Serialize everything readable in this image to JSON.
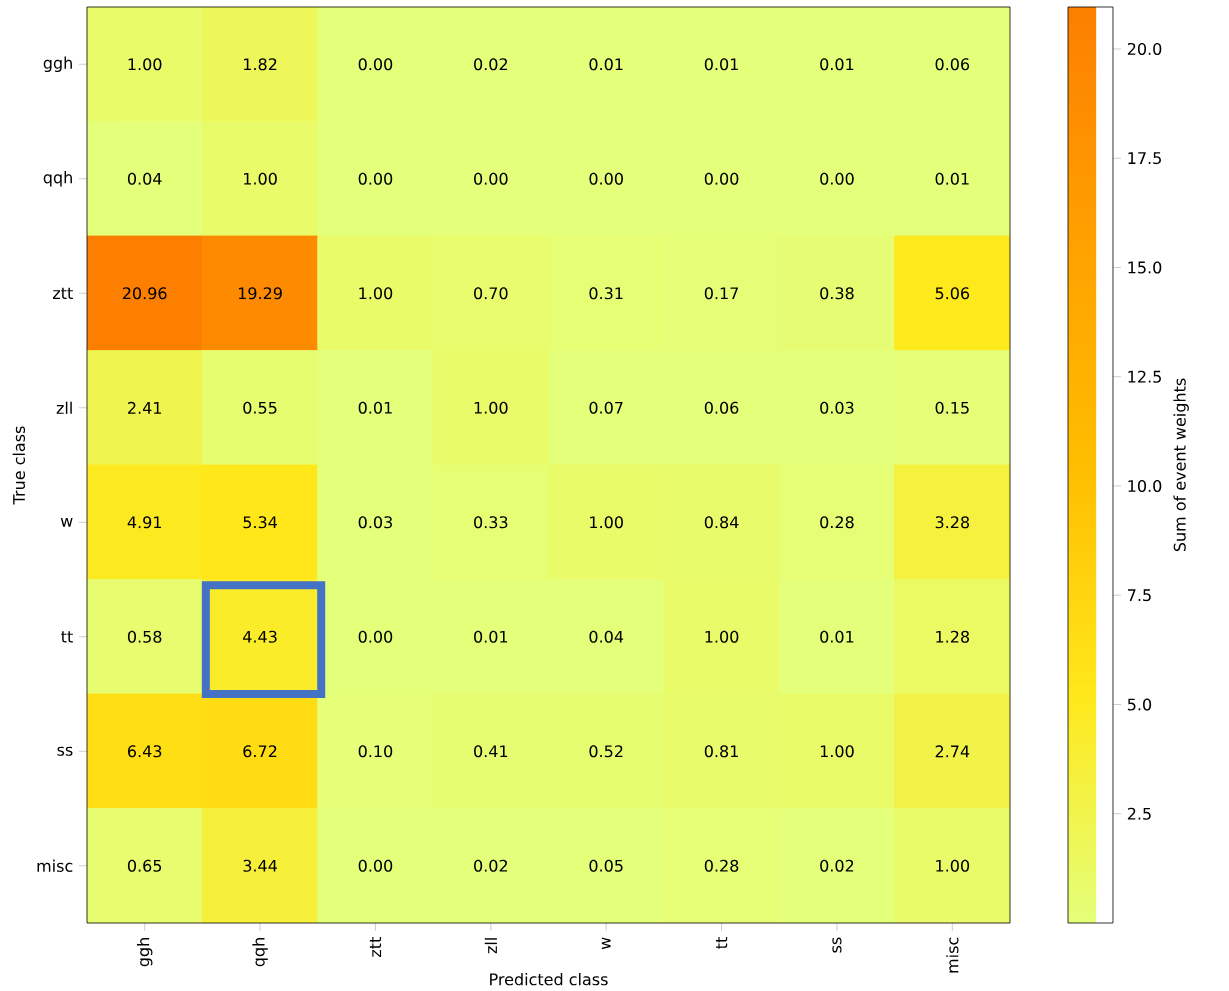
{
  "chart_data": {
    "type": "heatmap",
    "xlabel": "Predicted class",
    "ylabel": "True class",
    "clabel": "Sum of event weights",
    "categories": [
      "ggh",
      "qqh",
      "ztt",
      "zll",
      "w",
      "tt",
      "ss",
      "misc"
    ],
    "y_categories": [
      "ggh",
      "qqh",
      "ztt",
      "zll",
      "w",
      "tt",
      "ss",
      "misc"
    ],
    "cells": [
      [
        1.0,
        1.82,
        0.0,
        0.02,
        0.01,
        0.01,
        0.01,
        0.06
      ],
      [
        0.04,
        1.0,
        0.0,
        0.0,
        0.0,
        0.0,
        0.0,
        0.01
      ],
      [
        20.96,
        19.29,
        1.0,
        0.7,
        0.31,
        0.17,
        0.38,
        5.06
      ],
      [
        2.41,
        0.55,
        0.01,
        1.0,
        0.07,
        0.06,
        0.03,
        0.15
      ],
      [
        4.91,
        5.34,
        0.03,
        0.33,
        1.0,
        0.84,
        0.28,
        3.28
      ],
      [
        0.58,
        4.43,
        0.0,
        0.01,
        0.04,
        1.0,
        0.01,
        1.28
      ],
      [
        6.43,
        6.72,
        0.1,
        0.41,
        0.52,
        0.81,
        1.0,
        2.74
      ],
      [
        0.65,
        3.44,
        0.0,
        0.02,
        0.05,
        0.28,
        0.02,
        1.0
      ]
    ],
    "cell_labels": [
      [
        "1.00",
        "1.82",
        "0.00",
        "0.02",
        "0.01",
        "0.01",
        "0.01",
        "0.06"
      ],
      [
        "0.04",
        "1.00",
        "0.00",
        "0.00",
        "0.00",
        "0.00",
        "0.00",
        "0.01"
      ],
      [
        "20.96",
        "19.29",
        "1.00",
        "0.70",
        "0.31",
        "0.17",
        "0.38",
        "5.06"
      ],
      [
        "2.41",
        "0.55",
        "0.01",
        "1.00",
        "0.07",
        "0.06",
        "0.03",
        "0.15"
      ],
      [
        "4.91",
        "5.34",
        "0.03",
        "0.33",
        "1.00",
        "0.84",
        "0.28",
        "3.28"
      ],
      [
        "0.58",
        "4.43",
        "0.00",
        "0.01",
        "0.04",
        "1.00",
        "0.01",
        "1.28"
      ],
      [
        "6.43",
        "6.72",
        "0.10",
        "0.41",
        "0.52",
        "0.81",
        "1.00",
        "2.74"
      ],
      [
        "0.65",
        "3.44",
        "0.00",
        "0.02",
        "0.05",
        "0.28",
        "0.02",
        "1.00"
      ]
    ],
    "clim": [
      0,
      20.96
    ],
    "cticks": [
      2.5,
      {
        "value": 5,
        "label": "5.0"
      },
      7.5,
      {
        "value": 10,
        "label": "10.0"
      },
      12.5,
      {
        "value": 15,
        "label": "15.0"
      },
      17.5,
      {
        "value": 20,
        "label": "20.0"
      }
    ]
  }
}
